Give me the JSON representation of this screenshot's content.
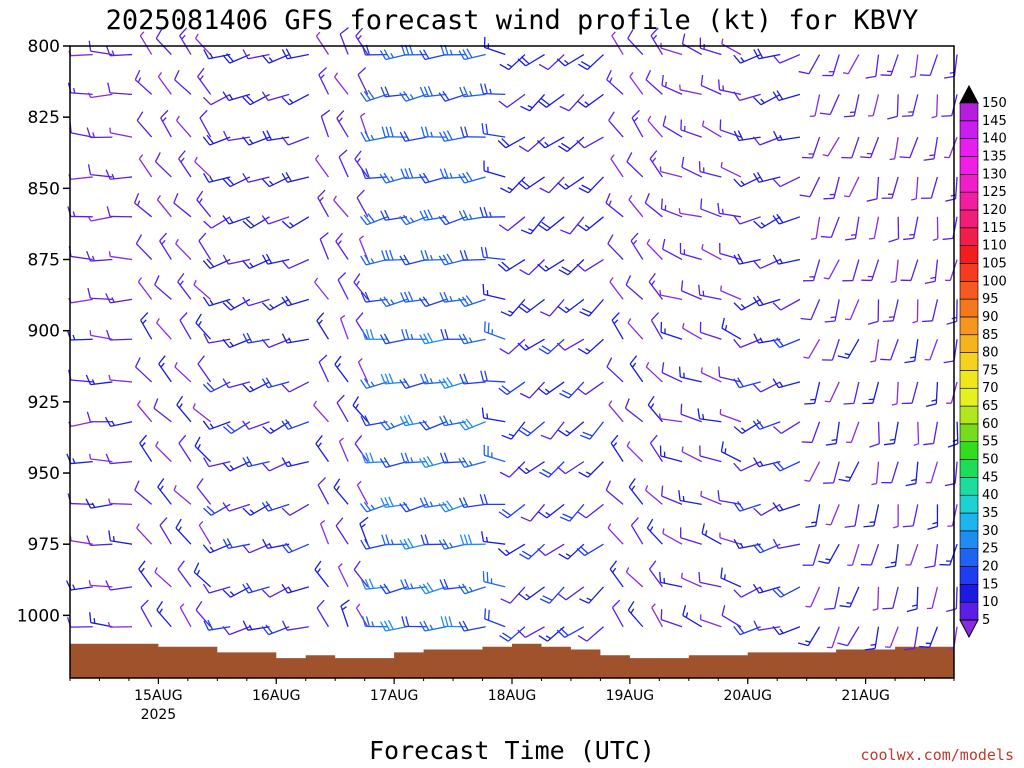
{
  "chart_data": {
    "type": "wind_barb_profile",
    "title": "2025081406 GFS forecast wind profile (kt) for KBVY",
    "xlabel": "Forecast Time (UTC)",
    "credit": "coolwx.com/models",
    "x_ticks": [
      {
        "label": "15AUG",
        "sub": "2025",
        "hour": 18
      },
      {
        "label": "16AUG",
        "sub": "",
        "hour": 42
      },
      {
        "label": "17AUG",
        "sub": "",
        "hour": 66
      },
      {
        "label": "18AUG",
        "sub": "",
        "hour": 90
      },
      {
        "label": "19AUG",
        "sub": "",
        "hour": 114
      },
      {
        "label": "20AUG",
        "sub": "",
        "hour": 138
      },
      {
        "label": "21AUG",
        "sub": "",
        "hour": 162
      }
    ],
    "xlim_hours": [
      0,
      180
    ],
    "y_ticks": [
      800,
      825,
      850,
      875,
      900,
      925,
      950,
      975,
      1000
    ],
    "ylim_hPa": [
      800,
      1022
    ],
    "ylabel": "",
    "colorbar": {
      "ticks": [
        5,
        10,
        15,
        20,
        25,
        30,
        35,
        40,
        45,
        50,
        55,
        60,
        65,
        70,
        75,
        80,
        85,
        90,
        95,
        100,
        105,
        110,
        115,
        120,
        125,
        130,
        135,
        140,
        145,
        150
      ],
      "colors": [
        "#8a2be2",
        "#5a1ee6",
        "#1a1ae0",
        "#1e3cf0",
        "#1e64f0",
        "#1e8cf0",
        "#1eb4f0",
        "#1ed2d2",
        "#1edca0",
        "#1edc5a",
        "#32dc1e",
        "#78dc1e",
        "#b4e61e",
        "#e6f01e",
        "#f0e61e",
        "#f5d21e",
        "#f5b41e",
        "#f5961e",
        "#f5781e",
        "#f55a1e",
        "#f53c1e",
        "#f01e1e",
        "#f01e4b",
        "#f01e78",
        "#f01ea0",
        "#f01ec8",
        "#f01ee6",
        "#e61ef0",
        "#c81ef0",
        "#b41edc"
      ]
    },
    "levels_hPa": [
      803,
      817,
      832,
      846,
      860,
      875,
      889,
      903,
      918,
      932,
      946,
      961,
      975,
      990,
      1004
    ],
    "surface_pressure": {
      "hours": [
        0,
        9,
        18,
        30,
        42,
        48,
        54,
        66,
        72,
        84,
        90,
        96,
        102,
        108,
        114,
        120,
        126,
        132,
        138,
        144,
        150,
        156,
        162,
        168,
        174,
        180
      ],
      "hPa": [
        1010,
        1010,
        1011,
        1013,
        1015,
        1014,
        1015,
        1013,
        1012,
        1011,
        1010,
        1011,
        1012,
        1014,
        1015,
        1015,
        1014,
        1014,
        1013,
        1013,
        1013,
        1012,
        1012,
        1011,
        1011,
        1011
      ]
    },
    "wind_regimes": [
      {
        "hours": [
          0,
          12
        ],
        "dir": 270,
        "speed": 10
      },
      {
        "hours": [
          12,
          30
        ],
        "dir": 320,
        "speed": 10
      },
      {
        "hours": [
          30,
          48
        ],
        "dir": 250,
        "speed": 15
      },
      {
        "hours": [
          48,
          60
        ],
        "dir": 330,
        "speed": 10
      },
      {
        "hours": [
          60,
          84
        ],
        "dir": 260,
        "speed": 25
      },
      {
        "hours": [
          84,
          90
        ],
        "dir": 280,
        "speed": 20
      },
      {
        "hours": [
          90,
          108
        ],
        "dir": 230,
        "speed": 15
      },
      {
        "hours": [
          108,
          120
        ],
        "dir": 320,
        "speed": 10
      },
      {
        "hours": [
          120,
          136
        ],
        "dir": 290,
        "speed": 10
      },
      {
        "hours": [
          136,
          150
        ],
        "dir": 250,
        "speed": 15
      },
      {
        "hours": [
          150,
          162
        ],
        "dir": 200,
        "speed": 10
      },
      {
        "hours": [
          162,
          180
        ],
        "dir": 190,
        "speed": 10
      }
    ]
  }
}
